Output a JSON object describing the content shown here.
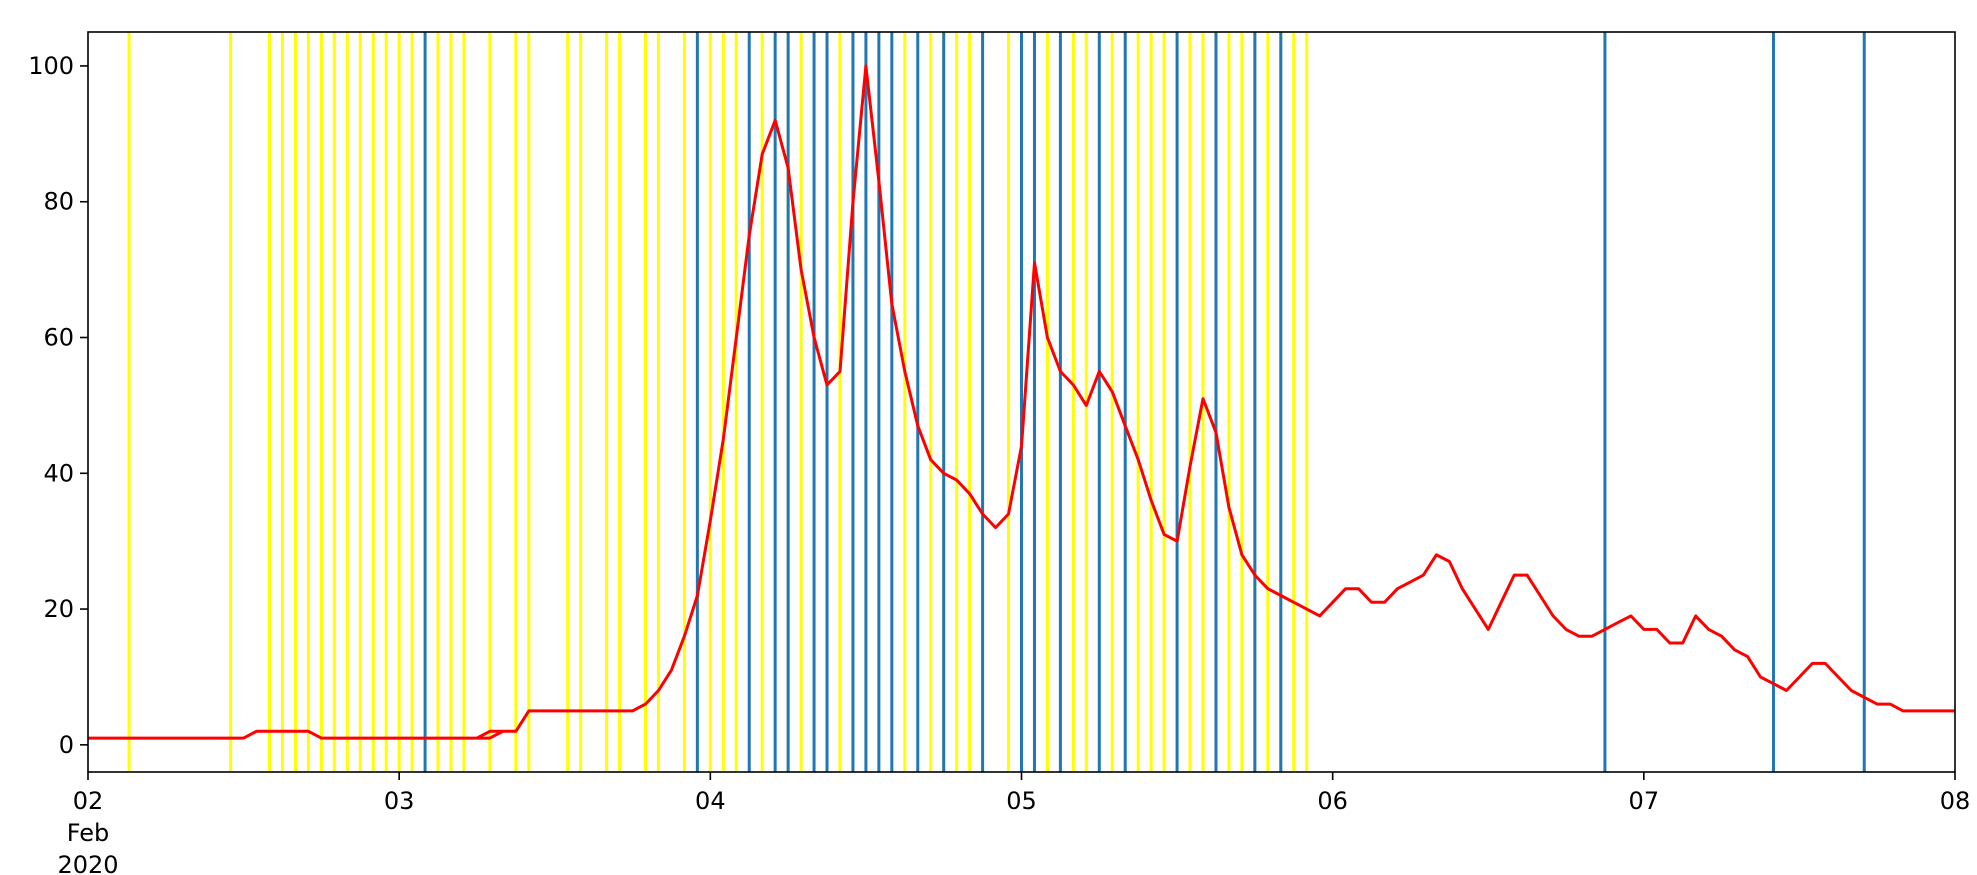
{
  "chart_data": {
    "type": "line",
    "x_axis": {
      "kind": "date",
      "range": [
        "2020-02-02T00:00",
        "2020-02-08T00:00"
      ],
      "ticks": [
        {
          "value": "2020-02-02T00:00",
          "label": "02",
          "sublabel": [
            "Feb",
            "2020"
          ]
        },
        {
          "value": "2020-02-03T00:00",
          "label": "03"
        },
        {
          "value": "2020-02-04T00:00",
          "label": "04"
        },
        {
          "value": "2020-02-05T00:00",
          "label": "05"
        },
        {
          "value": "2020-02-06T00:00",
          "label": "06"
        },
        {
          "value": "2020-02-07T00:00",
          "label": "07"
        },
        {
          "value": "2020-02-08T00:00",
          "label": "08"
        }
      ]
    },
    "y_axis": {
      "range": [
        -4,
        105
      ],
      "ticks": [
        0,
        20,
        40,
        60,
        80,
        100
      ]
    },
    "grid": false,
    "legend": "none",
    "series": [
      {
        "color": "#ff0000",
        "points": [
          [
            "2020-02-02T00:00",
            1
          ],
          [
            "2020-02-02T11:00",
            1
          ],
          [
            "2020-02-02T12:00",
            1
          ],
          [
            "2020-02-02T13:00",
            2
          ],
          [
            "2020-02-02T17:00",
            2
          ],
          [
            "2020-02-02T18:00",
            1
          ],
          [
            "2020-02-03T07:00",
            1
          ],
          [
            "2020-02-03T08:00",
            2
          ],
          [
            "2020-02-03T07:00",
            1
          ],
          [
            "2020-02-03T06:00",
            1
          ],
          [
            "2020-02-03T07:00",
            2
          ],
          [
            "2020-02-03T08:00",
            2
          ],
          [
            "2020-02-03T07:00",
            1
          ],
          [
            "2020-02-03T06:00",
            1
          ],
          [
            "2020-02-03T07:00",
            1
          ],
          [
            "2020-02-03T08:00",
            2
          ],
          [
            "2020-02-03T09:00",
            2
          ],
          [
            "2020-02-03T10:00",
            5
          ],
          [
            "2020-02-03T18:00",
            5
          ],
          [
            "2020-02-03T19:00",
            6
          ],
          [
            "2020-02-03T20:00",
            8
          ],
          [
            "2020-02-03T21:00",
            11
          ],
          [
            "2020-02-03T22:00",
            16
          ],
          [
            "2020-02-03T23:00",
            22
          ],
          [
            "2020-02-04T00:00",
            33
          ],
          [
            "2020-02-04T01:00",
            45
          ],
          [
            "2020-02-04T02:00",
            60
          ],
          [
            "2020-02-04T03:00",
            75
          ],
          [
            "2020-02-04T04:00",
            87
          ],
          [
            "2020-02-04T05:00",
            92
          ],
          [
            "2020-02-04T06:00",
            85
          ],
          [
            "2020-02-04T07:00",
            70
          ],
          [
            "2020-02-04T08:00",
            60
          ],
          [
            "2020-02-04T09:00",
            53
          ],
          [
            "2020-02-04T10:00",
            55
          ],
          [
            "2020-02-04T11:00",
            80
          ],
          [
            "2020-02-04T12:00",
            100
          ],
          [
            "2020-02-04T13:00",
            83
          ],
          [
            "2020-02-04T14:00",
            65
          ],
          [
            "2020-02-04T15:00",
            55
          ],
          [
            "2020-02-04T16:00",
            47
          ],
          [
            "2020-02-04T17:00",
            42
          ],
          [
            "2020-02-04T18:00",
            40
          ],
          [
            "2020-02-04T19:00",
            39
          ],
          [
            "2020-02-04T20:00",
            37
          ],
          [
            "2020-02-04T21:00",
            34
          ],
          [
            "2020-02-04T22:00",
            32
          ],
          [
            "2020-02-04T23:00",
            34
          ],
          [
            "2020-02-05T00:00",
            44
          ],
          [
            "2020-02-05T01:00",
            71
          ],
          [
            "2020-02-05T02:00",
            60
          ],
          [
            "2020-02-05T03:00",
            55
          ],
          [
            "2020-02-05T04:00",
            53
          ],
          [
            "2020-02-05T05:00",
            50
          ],
          [
            "2020-02-05T06:00",
            55
          ],
          [
            "2020-02-05T07:00",
            52
          ],
          [
            "2020-02-05T08:00",
            47
          ],
          [
            "2020-02-05T09:00",
            42
          ],
          [
            "2020-02-05T10:00",
            36
          ],
          [
            "2020-02-05T11:00",
            31
          ],
          [
            "2020-02-05T12:00",
            30
          ],
          [
            "2020-02-05T13:00",
            41
          ],
          [
            "2020-02-05T14:00",
            51
          ],
          [
            "2020-02-05T15:00",
            46
          ],
          [
            "2020-02-05T16:00",
            35
          ],
          [
            "2020-02-05T17:00",
            28
          ],
          [
            "2020-02-05T18:00",
            25
          ],
          [
            "2020-02-05T19:00",
            23
          ],
          [
            "2020-02-05T20:00",
            22
          ],
          [
            "2020-02-05T21:00",
            21
          ],
          [
            "2020-02-05T22:00",
            20
          ],
          [
            "2020-02-05T23:00",
            19
          ],
          [
            "2020-02-06T00:00",
            21
          ],
          [
            "2020-02-06T01:00",
            23
          ],
          [
            "2020-02-06T02:00",
            23
          ],
          [
            "2020-02-06T03:00",
            21
          ],
          [
            "2020-02-06T04:00",
            21
          ],
          [
            "2020-02-06T05:00",
            23
          ],
          [
            "2020-02-06T06:00",
            24
          ],
          [
            "2020-02-06T07:00",
            25
          ],
          [
            "2020-02-06T08:00",
            28
          ],
          [
            "2020-02-06T09:00",
            27
          ],
          [
            "2020-02-06T10:00",
            23
          ],
          [
            "2020-02-06T11:00",
            20
          ],
          [
            "2020-02-06T12:00",
            17
          ],
          [
            "2020-02-06T13:00",
            21
          ],
          [
            "2020-02-06T14:00",
            25
          ],
          [
            "2020-02-06T15:00",
            25
          ],
          [
            "2020-02-06T16:00",
            22
          ],
          [
            "2020-02-06T17:00",
            19
          ],
          [
            "2020-02-06T18:00",
            17
          ],
          [
            "2020-02-06T19:00",
            16
          ],
          [
            "2020-02-06T20:00",
            16
          ],
          [
            "2020-02-06T21:00",
            17
          ],
          [
            "2020-02-06T22:00",
            18
          ],
          [
            "2020-02-06T23:00",
            19
          ],
          [
            "2020-02-07T00:00",
            17
          ],
          [
            "2020-02-07T01:00",
            17
          ],
          [
            "2020-02-07T02:00",
            15
          ],
          [
            "2020-02-07T03:00",
            15
          ],
          [
            "2020-02-07T04:00",
            19
          ],
          [
            "2020-02-07T05:00",
            17
          ],
          [
            "2020-02-07T06:00",
            16
          ],
          [
            "2020-02-07T07:00",
            14
          ],
          [
            "2020-02-07T08:00",
            13
          ],
          [
            "2020-02-07T09:00",
            10
          ],
          [
            "2020-02-07T10:00",
            9
          ],
          [
            "2020-02-07T11:00",
            8
          ],
          [
            "2020-02-07T12:00",
            10
          ],
          [
            "2020-02-07T13:00",
            12
          ],
          [
            "2020-02-07T14:00",
            12
          ],
          [
            "2020-02-07T15:00",
            10
          ],
          [
            "2020-02-07T16:00",
            8
          ],
          [
            "2020-02-07T17:00",
            7
          ],
          [
            "2020-02-07T18:00",
            6
          ],
          [
            "2020-02-07T19:00",
            6
          ],
          [
            "2020-02-07T20:00",
            5
          ],
          [
            "2020-02-08T00:00",
            5
          ]
        ]
      }
    ],
    "vertical_lines": [
      {
        "color": "#ffff00",
        "x": [
          "2020-02-02T03:10",
          "2020-02-02T11:00",
          "2020-02-02T14:00",
          "2020-02-02T15:00",
          "2020-02-02T16:00",
          "2020-02-02T17:00",
          "2020-02-02T18:00",
          "2020-02-02T19:00",
          "2020-02-02T20:00",
          "2020-02-02T21:00",
          "2020-02-02T22:00",
          "2020-02-02T23:00",
          "2020-02-03T00:00",
          "2020-02-03T01:00",
          "2020-02-03T03:00",
          "2020-02-03T04:00",
          "2020-02-03T05:00",
          "2020-02-03T07:00",
          "2020-02-03T09:00",
          "2020-02-03T10:00",
          "2020-02-03T13:00",
          "2020-02-03T14:00",
          "2020-02-03T16:00",
          "2020-02-03T17:00",
          "2020-02-03T19:00",
          "2020-02-03T20:00",
          "2020-02-03T22:00",
          "2020-02-04T00:00",
          "2020-02-04T01:00",
          "2020-02-04T02:00",
          "2020-02-04T04:00",
          "2020-02-04T06:00",
          "2020-02-04T07:00",
          "2020-02-04T10:00",
          "2020-02-04T11:00",
          "2020-02-04T15:00",
          "2020-02-04T17:00",
          "2020-02-04T18:00",
          "2020-02-04T19:00",
          "2020-02-04T20:00",
          "2020-02-04T21:00",
          "2020-02-04T23:00",
          "2020-02-05T00:00",
          "2020-02-05T02:00",
          "2020-02-05T04:00",
          "2020-02-05T05:00",
          "2020-02-05T07:00",
          "2020-02-05T09:00",
          "2020-02-05T10:00",
          "2020-02-05T11:00",
          "2020-02-05T13:00",
          "2020-02-05T14:00",
          "2020-02-05T15:00",
          "2020-02-05T16:00",
          "2020-02-05T17:00",
          "2020-02-05T18:00",
          "2020-02-05T19:00",
          "2020-02-05T20:00",
          "2020-02-05T21:00",
          "2020-02-05T22:00"
        ]
      },
      {
        "color": "#1f77b4",
        "x": [
          "2020-02-03T02:00",
          "2020-02-03T23:00",
          "2020-02-04T03:00",
          "2020-02-04T05:00",
          "2020-02-04T06:00",
          "2020-02-04T08:00",
          "2020-02-04T09:00",
          "2020-02-04T11:00",
          "2020-02-04T12:00",
          "2020-02-04T13:00",
          "2020-02-04T14:00",
          "2020-02-04T16:00",
          "2020-02-04T18:00",
          "2020-02-04T21:00",
          "2020-02-05T00:00",
          "2020-02-05T01:00",
          "2020-02-05T03:00",
          "2020-02-05T06:00",
          "2020-02-05T08:00",
          "2020-02-05T12:00",
          "2020-02-05T15:00",
          "2020-02-05T18:00",
          "2020-02-05T20:00",
          "2020-02-06T21:00",
          "2020-02-07T10:00",
          "2020-02-07T17:00"
        ]
      }
    ]
  }
}
